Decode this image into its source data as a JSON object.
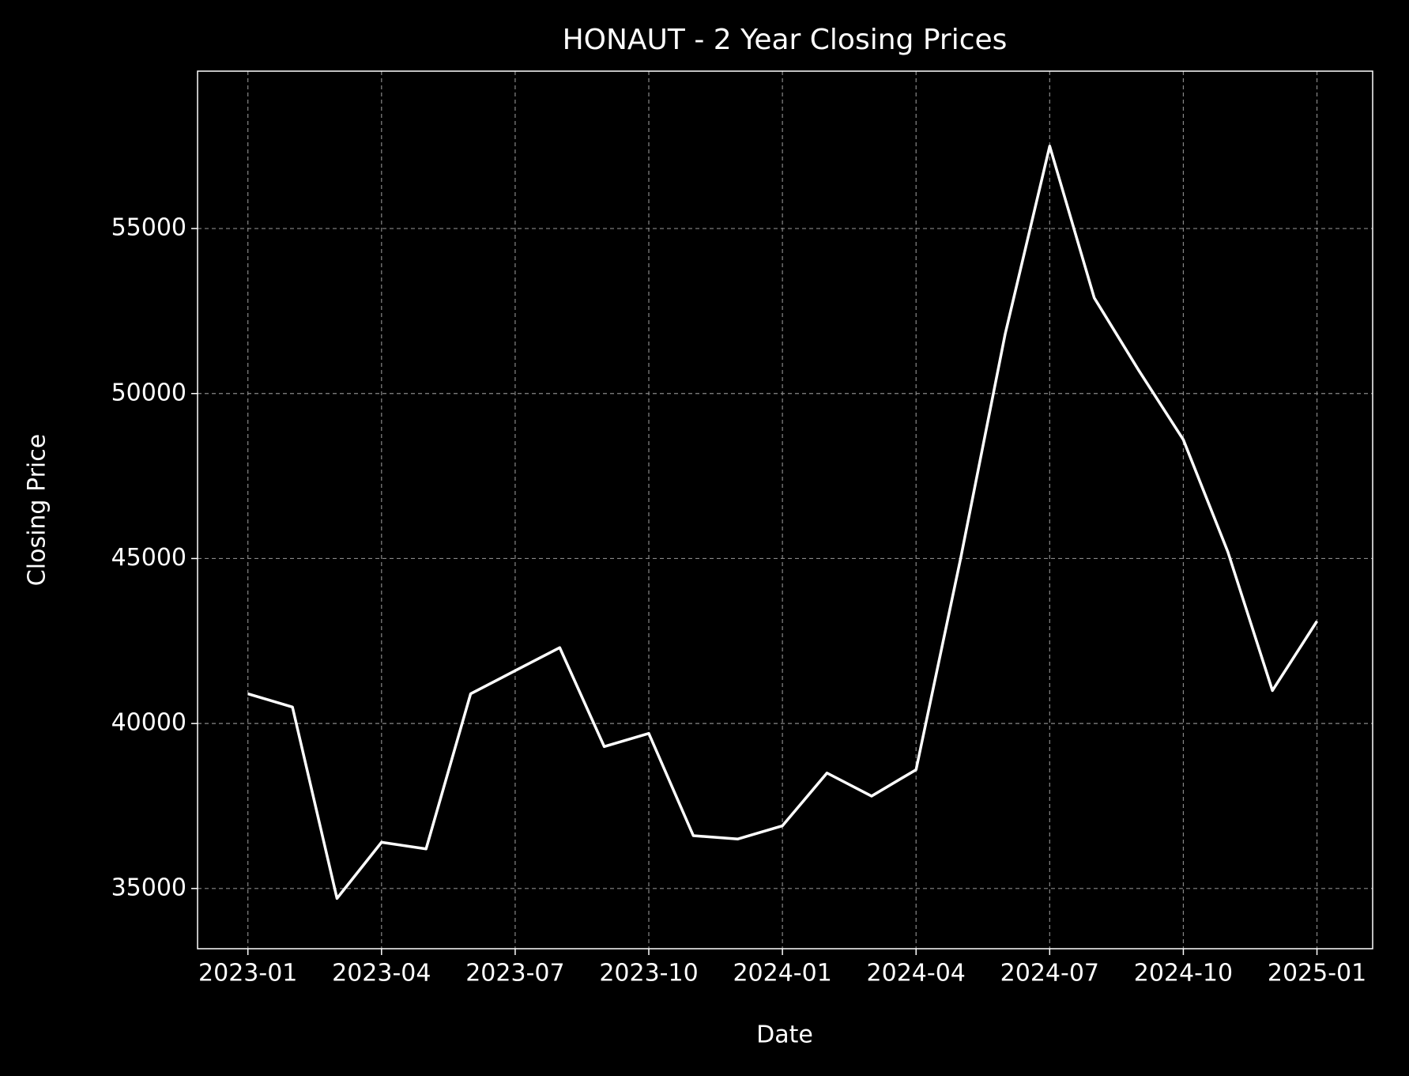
{
  "chart_data": {
    "type": "line",
    "title": "HONAUT - 2 Year Closing Prices",
    "x_label": "Date",
    "y_label": "Closing Price",
    "x": [
      "2023-01",
      "2023-02",
      "2023-03",
      "2023-04",
      "2023-05",
      "2023-06",
      "2023-07",
      "2023-08",
      "2023-09",
      "2023-10",
      "2023-11",
      "2023-12",
      "2024-01",
      "2024-02",
      "2024-03",
      "2024-04",
      "2024-05",
      "2024-06",
      "2024-07",
      "2024-08",
      "2024-09",
      "2024-10",
      "2024-11",
      "2024-12",
      "2025-01"
    ],
    "series": [
      {
        "name": "Closing Price",
        "color": "#ffffff",
        "values": [
          40900,
          40500,
          34700,
          36400,
          36200,
          40900,
          41600,
          42300,
          39300,
          39700,
          36600,
          36500,
          36900,
          38500,
          37800,
          38600,
          45000,
          51800,
          57500,
          52900,
          50700,
          48600,
          45200,
          41000,
          43100
        ]
      }
    ],
    "xticks": [
      "2023-01",
      "2023-04",
      "2023-07",
      "2023-10",
      "2024-01",
      "2024-04",
      "2024-07",
      "2024-10",
      "2025-01"
    ],
    "ylim": [
      33175,
      59770
    ],
    "yticks": [
      35000,
      40000,
      45000,
      50000,
      55000
    ],
    "grid": true
  }
}
